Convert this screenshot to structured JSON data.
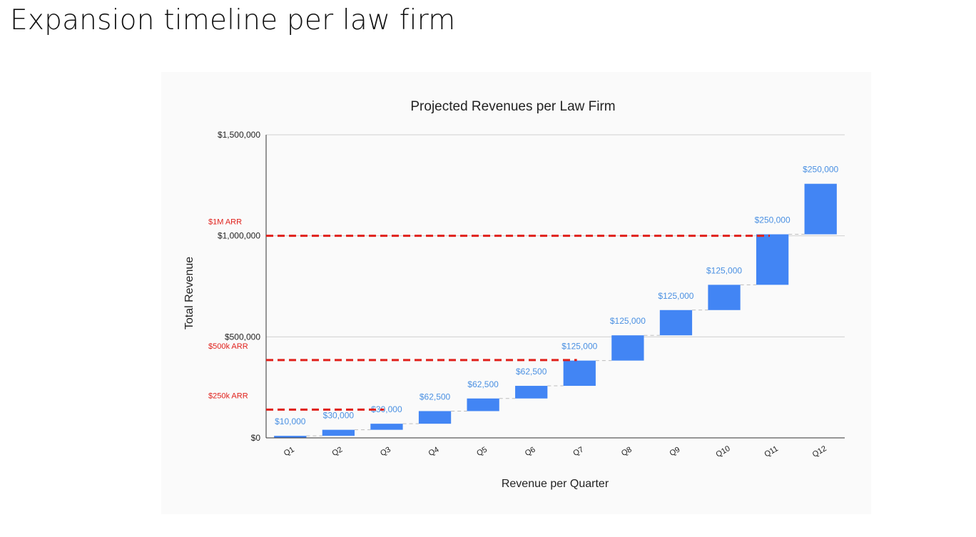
{
  "page": {
    "title": "Expansion timeline per law firm"
  },
  "chart_data": {
    "type": "waterfall",
    "title": "Projected Revenues per Law Firm",
    "xlabel": "Revenue per Quarter",
    "ylabel": "Total Revenue",
    "categories": [
      "Q1",
      "Q2",
      "Q3",
      "Q4",
      "Q5",
      "Q6",
      "Q7",
      "Q8",
      "Q9",
      "Q10",
      "Q11",
      "Q12"
    ],
    "values": [
      10000,
      30000,
      30000,
      62500,
      62500,
      62500,
      125000,
      125000,
      125000,
      125000,
      250000,
      250000
    ],
    "data_labels": [
      "$10,000",
      "$30,000",
      "$30,000",
      "$62,500",
      "$62,500",
      "$62,500",
      "$125,000",
      "$125,000",
      "$125,000",
      "$125,000",
      "$250,000",
      "$250,000"
    ],
    "ylim": [
      0,
      1500000
    ],
    "yticks": [
      0,
      500000,
      1000000,
      1500000
    ],
    "ytick_labels": [
      "$0",
      "$500,000",
      "$1,000,000",
      "$1,500,000"
    ],
    "grid": true,
    "bar_color": "#4285f4",
    "label_color": "#4a90e2",
    "reference_lines": [
      {
        "label": "$1M ARR",
        "value": 1000000,
        "end_category": "Q11",
        "color": "#e0201b"
      },
      {
        "label": "$500k ARR",
        "value": 385000,
        "end_category": "Q7",
        "color": "#e0201b"
      },
      {
        "label": "$250k ARR",
        "value": 140000,
        "end_category": "Q3",
        "color": "#e0201b"
      }
    ]
  }
}
